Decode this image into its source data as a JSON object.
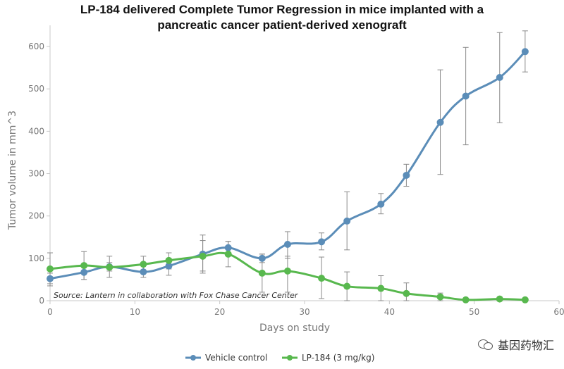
{
  "watermark": {
    "text": "基因药物汇",
    "icon": "wechat-icon"
  },
  "colors": {
    "vehicle": "#5b8db8",
    "lp184": "#58b84e",
    "axis": "#c8c8c8",
    "text": "#777777",
    "errbar": "#8a8a8a"
  },
  "chart_data": {
    "type": "line",
    "title_lines": [
      "LP-184 delivered Complete Tumor Regression in mice implanted with a",
      "pancreatic cancer patient-derived xenograft"
    ],
    "xlabel": "Days on study",
    "ylabel": "Tumor volume in mm^3",
    "xlim": [
      0,
      60
    ],
    "ylim": [
      0,
      650
    ],
    "xticks": [
      0,
      10,
      20,
      30,
      40,
      50,
      60
    ],
    "yticks": [
      0,
      100,
      200,
      300,
      400,
      500,
      600
    ],
    "grid": false,
    "legend_position": "bottom",
    "annotation": "Source: Lantern in collaboration with Fox Chase Cancer Center",
    "series": [
      {
        "name": "Vehicle control",
        "color": "#5b8db8",
        "x": [
          0,
          4,
          7,
          11,
          14,
          18,
          21,
          25,
          28,
          32,
          35,
          39,
          42,
          46,
          49,
          53,
          56
        ],
        "y": [
          52,
          67,
          80,
          68,
          82,
          110,
          125,
          100,
          133,
          139,
          188,
          228,
          296,
          421,
          483,
          527,
          588
        ],
        "yerr_low": [
          40,
          50,
          70,
          55,
          60,
          70,
          110,
          90,
          100,
          120,
          120,
          205,
          270,
          298,
          368,
          420,
          540
        ],
        "yerr_high": [
          65,
          82,
          90,
          85,
          100,
          155,
          140,
          110,
          163,
          160,
          257,
          253,
          322,
          545,
          598,
          633,
          637
        ]
      },
      {
        "name": "LP-184 (3 mg/kg)",
        "color": "#58b84e",
        "x": [
          0,
          4,
          7,
          11,
          14,
          18,
          21,
          25,
          28,
          32,
          35,
          39,
          42,
          46,
          49,
          53,
          56
        ],
        "y": [
          75,
          83,
          79,
          86,
          95,
          105,
          110,
          65,
          70,
          53,
          34,
          29,
          17,
          9,
          2,
          4,
          2
        ],
        "yerr_low": [
          35,
          50,
          55,
          65,
          75,
          65,
          80,
          20,
          20,
          5,
          0,
          0,
          0,
          0,
          0,
          0,
          0
        ],
        "yerr_high": [
          113,
          116,
          105,
          105,
          113,
          142,
          140,
          110,
          105,
          103,
          68,
          59,
          42,
          18,
          6,
          8,
          5
        ]
      }
    ]
  }
}
